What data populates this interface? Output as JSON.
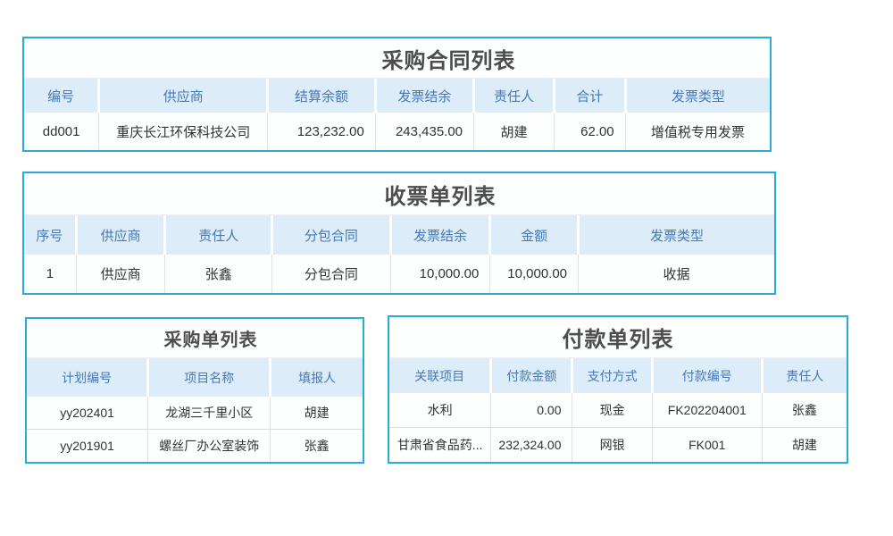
{
  "colors": {
    "table_border": "#29a9dc",
    "header_background": "#dcecf8",
    "header_text": "#4579b8",
    "title_text": "#4d4d4d",
    "body_text": "#333333",
    "row_divider": "#dddddd"
  },
  "tables": {
    "purchase_contracts": {
      "title": "采购合同列表",
      "columns": [
        {
          "label": "编号",
          "width": "10%",
          "align": "center"
        },
        {
          "label": "供应商",
          "width": "22.9%",
          "align": "center"
        },
        {
          "label": "结算余额",
          "width": "14.4%",
          "align": "right"
        },
        {
          "label": "发票结余",
          "width": "13.1%",
          "align": "right"
        },
        {
          "label": "责任人",
          "width": "10.6%",
          "align": "center"
        },
        {
          "label": "合计",
          "width": "9.3%",
          "align": "right"
        },
        {
          "label": "发票类型",
          "width": "19.7%",
          "align": "center"
        }
      ],
      "rows": [
        [
          "dd001",
          "重庆长江环保科技公司",
          "123,232.00",
          "243,435.00",
          "胡建",
          "62.00",
          "增值税专用发票"
        ]
      ]
    },
    "receipts": {
      "title": "收票单列表",
      "columns": [
        {
          "label": "序号",
          "width": "6.8%",
          "align": "center"
        },
        {
          "label": "供应商",
          "width": "11.7%",
          "align": "center"
        },
        {
          "label": "责任人",
          "width": "14.2%",
          "align": "center"
        },
        {
          "label": "分包合同",
          "width": "15.8%",
          "align": "center"
        },
        {
          "label": "发票结余",
          "width": "13.2%",
          "align": "right"
        },
        {
          "label": "金额",
          "width": "11.6%",
          "align": "right"
        },
        {
          "label": "发票类型",
          "width": "26.7%",
          "align": "center"
        }
      ],
      "rows": [
        [
          "1",
          "供应商",
          "张鑫",
          "分包合同",
          "10,000.00",
          "10,000.00",
          "收据"
        ]
      ]
    },
    "purchase_orders": {
      "title": "采购单列表",
      "columns": [
        {
          "label": "计划编号",
          "width": "36.3%",
          "align": "center"
        },
        {
          "label": "项目名称",
          "width": "36.3%",
          "align": "center"
        },
        {
          "label": "填报人",
          "width": "27.4%",
          "align": "center"
        }
      ],
      "rows": [
        [
          "yy202401",
          "龙湖三千里小区",
          "胡建"
        ],
        [
          "yy201901",
          "螺丝厂办公室装饰",
          "张鑫"
        ]
      ]
    },
    "payments": {
      "title": "付款单列表",
      "columns": [
        {
          "label": "关联项目",
          "width": "22.5%",
          "align": "center"
        },
        {
          "label": "付款金额",
          "width": "17.6%",
          "align": "right"
        },
        {
          "label": "支付方式",
          "width": "17.2%",
          "align": "center"
        },
        {
          "label": "付款编号",
          "width": "24.1%",
          "align": "center"
        },
        {
          "label": "责任人",
          "width": "18.6%",
          "align": "center"
        }
      ],
      "rows": [
        [
          "水利",
          "0.00",
          "现金",
          "FK202204001",
          "张鑫"
        ],
        [
          "甘肃省食品药...",
          "232,324.00",
          "网银",
          "FK001",
          "胡建"
        ]
      ]
    }
  }
}
